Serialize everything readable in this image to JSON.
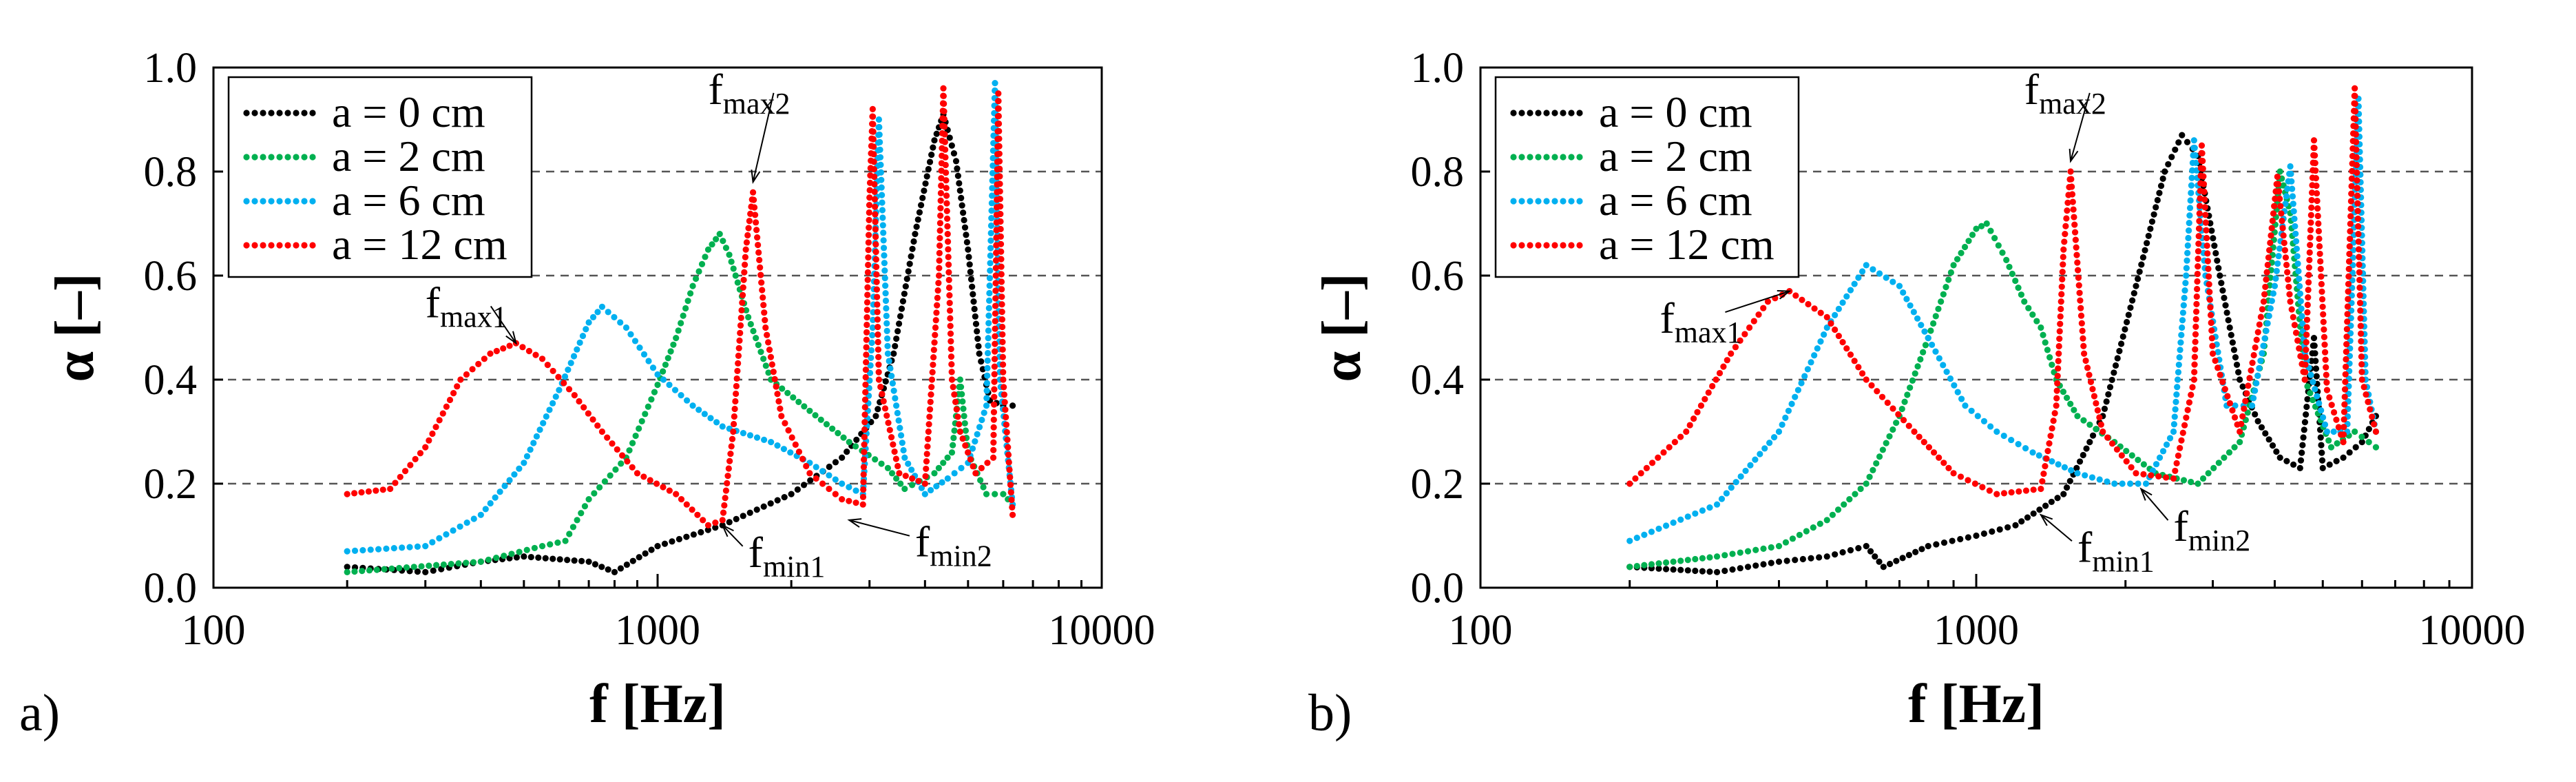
{
  "figure_title": "",
  "chart_data": [
    {
      "type": "scatter",
      "panel_label": "a)",
      "title": "",
      "xlabel": "f [Hz]",
      "ylabel": "α [–]",
      "xscale": "log",
      "xlim": [
        100,
        10000
      ],
      "ylim": [
        0,
        1.0
      ],
      "xticks": [
        "100",
        "1000",
        "10000"
      ],
      "yticks": [
        "0.0",
        "0.2",
        "0.4",
        "0.6",
        "0.8",
        "1.0"
      ],
      "grid": "horizontal dashed at 0.2, 0.4, 0.6, 0.8",
      "legend_position": "top-left",
      "series": [
        {
          "name": "a = 0 cm",
          "color": "#000000",
          "points": [
            [
              200,
              0.04
            ],
            [
              300,
              0.03
            ],
            [
              400,
              0.05
            ],
            [
              500,
              0.06
            ],
            [
              700,
              0.05
            ],
            [
              800,
              0.03
            ],
            [
              1000,
              0.08
            ],
            [
              1400,
              0.12
            ],
            [
              2000,
              0.18
            ],
            [
              2600,
              0.25
            ],
            [
              3100,
              0.33
            ],
            [
              3400,
              0.45
            ],
            [
              3800,
              0.68
            ],
            [
              4200,
              0.86
            ],
            [
              4400,
              0.91
            ],
            [
              4700,
              0.82
            ],
            [
              5000,
              0.65
            ],
            [
              5300,
              0.45
            ],
            [
              5600,
              0.36
            ],
            [
              6000,
              0.35
            ],
            [
              6300,
              0.35
            ]
          ]
        },
        {
          "name": "a = 2 cm",
          "color": "#00b050",
          "points": [
            [
              200,
              0.03
            ],
            [
              400,
              0.05
            ],
            [
              550,
              0.08
            ],
            [
              620,
              0.09
            ],
            [
              700,
              0.17
            ],
            [
              850,
              0.25
            ],
            [
              1000,
              0.39
            ],
            [
              1100,
              0.48
            ],
            [
              1200,
              0.58
            ],
            [
              1300,
              0.65
            ],
            [
              1380,
              0.68
            ],
            [
              1450,
              0.64
            ],
            [
              1600,
              0.52
            ],
            [
              1800,
              0.4
            ],
            [
              2200,
              0.34
            ],
            [
              2700,
              0.28
            ],
            [
              3300,
              0.23
            ],
            [
              3600,
              0.19
            ],
            [
              4200,
              0.22
            ],
            [
              4600,
              0.26
            ],
            [
              4800,
              0.4
            ],
            [
              5000,
              0.26
            ],
            [
              5500,
              0.18
            ],
            [
              6000,
              0.18
            ],
            [
              6300,
              0.16
            ]
          ]
        },
        {
          "name": "a = 6 cm",
          "color": "#00b0f0",
          "points": [
            [
              200,
              0.07
            ],
            [
              300,
              0.08
            ],
            [
              400,
              0.14
            ],
            [
              500,
              0.24
            ],
            [
              600,
              0.38
            ],
            [
              700,
              0.51
            ],
            [
              750,
              0.54
            ],
            [
              850,
              0.5
            ],
            [
              1000,
              0.41
            ],
            [
              1200,
              0.35
            ],
            [
              1400,
              0.31
            ],
            [
              1800,
              0.28
            ],
            [
              2200,
              0.24
            ],
            [
              2600,
              0.2
            ],
            [
              2900,
              0.18
            ],
            [
              3050,
              0.5
            ],
            [
              3150,
              0.9
            ],
            [
              3300,
              0.45
            ],
            [
              3600,
              0.25
            ],
            [
              4000,
              0.18
            ],
            [
              4500,
              0.21
            ],
            [
              5000,
              0.24
            ],
            [
              5500,
              0.35
            ],
            [
              5750,
              0.97
            ],
            [
              5900,
              0.4
            ],
            [
              6300,
              0.16
            ]
          ]
        },
        {
          "name": "a = 12 cm",
          "color": "#ff0000",
          "points": [
            [
              200,
              0.18
            ],
            [
              250,
              0.19
            ],
            [
              300,
              0.27
            ],
            [
              360,
              0.4
            ],
            [
              420,
              0.45
            ],
            [
              480,
              0.47
            ],
            [
              550,
              0.44
            ],
            [
              650,
              0.37
            ],
            [
              750,
              0.3
            ],
            [
              900,
              0.22
            ],
            [
              1100,
              0.18
            ],
            [
              1300,
              0.12
            ],
            [
              1400,
              0.13
            ],
            [
              1480,
              0.3
            ],
            [
              1580,
              0.65
            ],
            [
              1640,
              0.76
            ],
            [
              1750,
              0.5
            ],
            [
              1900,
              0.33
            ],
            [
              2200,
              0.22
            ],
            [
              2600,
              0.17
            ],
            [
              2900,
              0.16
            ],
            [
              3000,
              0.75
            ],
            [
              3050,
              0.92
            ],
            [
              3150,
              0.4
            ],
            [
              3500,
              0.22
            ],
            [
              4000,
              0.2
            ],
            [
              4300,
              0.6
            ],
            [
              4400,
              0.96
            ],
            [
              4600,
              0.4
            ],
            [
              4800,
              0.3
            ],
            [
              5200,
              0.22
            ],
            [
              5700,
              0.25
            ],
            [
              5850,
              0.95
            ],
            [
              6000,
              0.4
            ],
            [
              6300,
              0.14
            ]
          ]
        }
      ],
      "annotations": [
        {
          "main": "f",
          "sub": "max1",
          "x": 300,
          "y": 0.52,
          "arrow_to": [
            480,
            0.47
          ]
        },
        {
          "main": "f",
          "sub": "max2",
          "x": 1300,
          "y": 0.93,
          "arrow_to": [
            1640,
            0.78
          ]
        },
        {
          "main": "f",
          "sub": "min1",
          "x": 1600,
          "y": 0.04,
          "arrow_to": [
            1400,
            0.12
          ]
        },
        {
          "main": "f",
          "sub": "min2",
          "x": 3800,
          "y": 0.06,
          "arrow_to": [
            2700,
            0.13
          ]
        }
      ]
    },
    {
      "type": "scatter",
      "panel_label": "b)",
      "title": "",
      "xlabel": "f [Hz]",
      "ylabel": "α [–]",
      "xscale": "log",
      "xlim": [
        100,
        10000
      ],
      "ylim": [
        0,
        1.0
      ],
      "xticks": [
        "100",
        "1000",
        "10000"
      ],
      "yticks": [
        "0.0",
        "0.2",
        "0.4",
        "0.6",
        "0.8",
        "1.0"
      ],
      "grid": "horizontal dashed at 0.2, 0.4, 0.6, 0.8",
      "legend_position": "top-left",
      "series": [
        {
          "name": "a = 0 cm",
          "color": "#000000",
          "points": [
            [
              200,
              0.04
            ],
            [
              300,
              0.03
            ],
            [
              400,
              0.05
            ],
            [
              500,
              0.06
            ],
            [
              600,
              0.08
            ],
            [
              650,
              0.04
            ],
            [
              800,
              0.08
            ],
            [
              1000,
              0.1
            ],
            [
              1200,
              0.12
            ],
            [
              1500,
              0.18
            ],
            [
              1800,
              0.33
            ],
            [
              2100,
              0.58
            ],
            [
              2400,
              0.8
            ],
            [
              2600,
              0.87
            ],
            [
              2800,
              0.83
            ],
            [
              3100,
              0.6
            ],
            [
              3400,
              0.4
            ],
            [
              3700,
              0.32
            ],
            [
              4100,
              0.25
            ],
            [
              4500,
              0.23
            ],
            [
              4800,
              0.48
            ],
            [
              5000,
              0.23
            ],
            [
              5500,
              0.25
            ],
            [
              6000,
              0.28
            ],
            [
              6400,
              0.33
            ]
          ]
        },
        {
          "name": "a = 2 cm",
          "color": "#00b050",
          "points": [
            [
              200,
              0.04
            ],
            [
              300,
              0.06
            ],
            [
              400,
              0.08
            ],
            [
              500,
              0.13
            ],
            [
              600,
              0.2
            ],
            [
              700,
              0.33
            ],
            [
              800,
              0.48
            ],
            [
              900,
              0.62
            ],
            [
              1000,
              0.69
            ],
            [
              1050,
              0.7
            ],
            [
              1150,
              0.63
            ],
            [
              1250,
              0.55
            ],
            [
              1350,
              0.5
            ],
            [
              1450,
              0.4
            ],
            [
              1600,
              0.33
            ],
            [
              1900,
              0.28
            ],
            [
              2300,
              0.22
            ],
            [
              2800,
              0.2
            ],
            [
              3400,
              0.28
            ],
            [
              3800,
              0.45
            ],
            [
              4100,
              0.8
            ],
            [
              4300,
              0.72
            ],
            [
              4600,
              0.4
            ],
            [
              5200,
              0.27
            ],
            [
              5800,
              0.3
            ],
            [
              6400,
              0.27
            ]
          ]
        },
        {
          "name": "a = 6 cm",
          "color": "#00b0f0",
          "points": [
            [
              200,
              0.09
            ],
            [
              300,
              0.16
            ],
            [
              400,
              0.3
            ],
            [
              500,
              0.5
            ],
            [
              600,
              0.62
            ],
            [
              700,
              0.58
            ],
            [
              800,
              0.48
            ],
            [
              950,
              0.35
            ],
            [
              1100,
              0.3
            ],
            [
              1300,
              0.26
            ],
            [
              1600,
              0.22
            ],
            [
              1900,
              0.2
            ],
            [
              2200,
              0.2
            ],
            [
              2500,
              0.3
            ],
            [
              2650,
              0.6
            ],
            [
              2750,
              0.86
            ],
            [
              2900,
              0.6
            ],
            [
              3200,
              0.35
            ],
            [
              3600,
              0.35
            ],
            [
              4000,
              0.58
            ],
            [
              4300,
              0.81
            ],
            [
              4600,
              0.45
            ],
            [
              5100,
              0.3
            ],
            [
              5600,
              0.3
            ],
            [
              5900,
              0.94
            ],
            [
              6100,
              0.4
            ],
            [
              6400,
              0.3
            ]
          ]
        },
        {
          "name": "a = 12 cm",
          "color": "#ff0000",
          "points": [
            [
              200,
              0.2
            ],
            [
              260,
              0.3
            ],
            [
              320,
              0.45
            ],
            [
              380,
              0.55
            ],
            [
              420,
              0.57
            ],
            [
              500,
              0.52
            ],
            [
              600,
              0.4
            ],
            [
              750,
              0.3
            ],
            [
              900,
              0.22
            ],
            [
              1100,
              0.18
            ],
            [
              1350,
              0.19
            ],
            [
              1450,
              0.35
            ],
            [
              1500,
              0.65
            ],
            [
              1550,
              0.8
            ],
            [
              1650,
              0.45
            ],
            [
              1800,
              0.3
            ],
            [
              2100,
              0.22
            ],
            [
              2500,
              0.21
            ],
            [
              2750,
              0.4
            ],
            [
              2850,
              0.85
            ],
            [
              3000,
              0.45
            ],
            [
              3400,
              0.3
            ],
            [
              3800,
              0.55
            ],
            [
              4050,
              0.79
            ],
            [
              4300,
              0.55
            ],
            [
              4600,
              0.4
            ],
            [
              4800,
              0.86
            ],
            [
              5100,
              0.38
            ],
            [
              5500,
              0.28
            ],
            [
              5800,
              0.96
            ],
            [
              6000,
              0.4
            ],
            [
              6400,
              0.3
            ]
          ]
        }
      ],
      "annotations": [
        {
          "main": "f",
          "sub": "max1",
          "x": 230,
          "y": 0.49,
          "arrow_to": [
            420,
            0.57
          ]
        },
        {
          "main": "f",
          "sub": "max2",
          "x": 1250,
          "y": 0.93,
          "arrow_to": [
            1550,
            0.82
          ]
        },
        {
          "main": "f",
          "sub": "min1",
          "x": 1600,
          "y": 0.05,
          "arrow_to": [
            1350,
            0.14
          ]
        },
        {
          "main": "f",
          "sub": "min2",
          "x": 2500,
          "y": 0.09,
          "arrow_to": [
            2150,
            0.19
          ]
        }
      ]
    }
  ]
}
